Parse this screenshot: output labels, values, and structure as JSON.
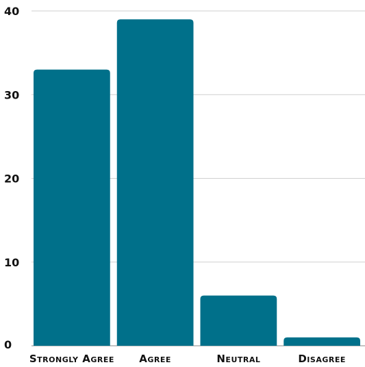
{
  "chart_data": {
    "type": "bar",
    "title": "",
    "xlabel": "",
    "ylabel": "",
    "categories": [
      "Strongly Agree",
      "Agree",
      "Neutral",
      "Disagree"
    ],
    "values": [
      33,
      39,
      6,
      1
    ],
    "ylim": [
      0,
      40
    ],
    "yticks": [
      0,
      10,
      20,
      30,
      40
    ],
    "grid": true,
    "legend": "none",
    "colors": {
      "bar": "#00708A"
    }
  }
}
